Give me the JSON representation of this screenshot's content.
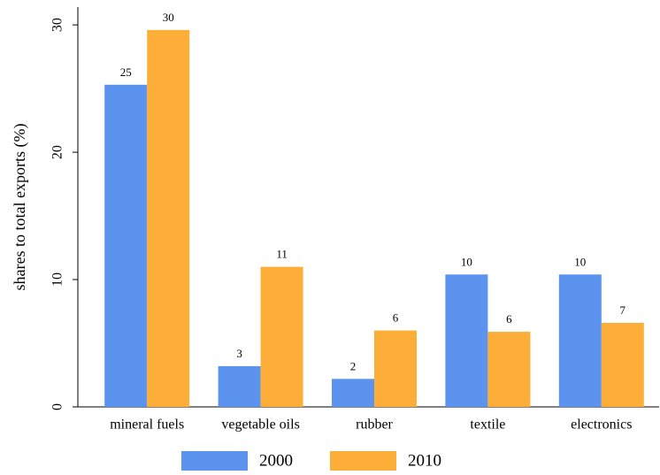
{
  "chart_data": {
    "type": "bar",
    "ylabel": "shares to total exports (%)",
    "categories": [
      "mineral fuels",
      "vegetable oils",
      "rubber",
      "textile",
      "electronics"
    ],
    "series": [
      {
        "name": "2000",
        "color": "#5b93ef",
        "values": [
          25.3,
          3.2,
          2.2,
          10.4,
          10.4
        ],
        "value_labels": [
          "25",
          "3",
          "2",
          "10",
          "10"
        ]
      },
      {
        "name": "2010",
        "color": "#fdae38",
        "values": [
          29.6,
          11.0,
          6.0,
          5.9,
          6.6
        ],
        "value_labels": [
          "30",
          "11",
          "6",
          "6",
          "7"
        ]
      }
    ],
    "ylim": [
      0,
      31.4
    ],
    "yticks": [
      0,
      10,
      20,
      30
    ],
    "grid": false,
    "legend": "bottom"
  }
}
